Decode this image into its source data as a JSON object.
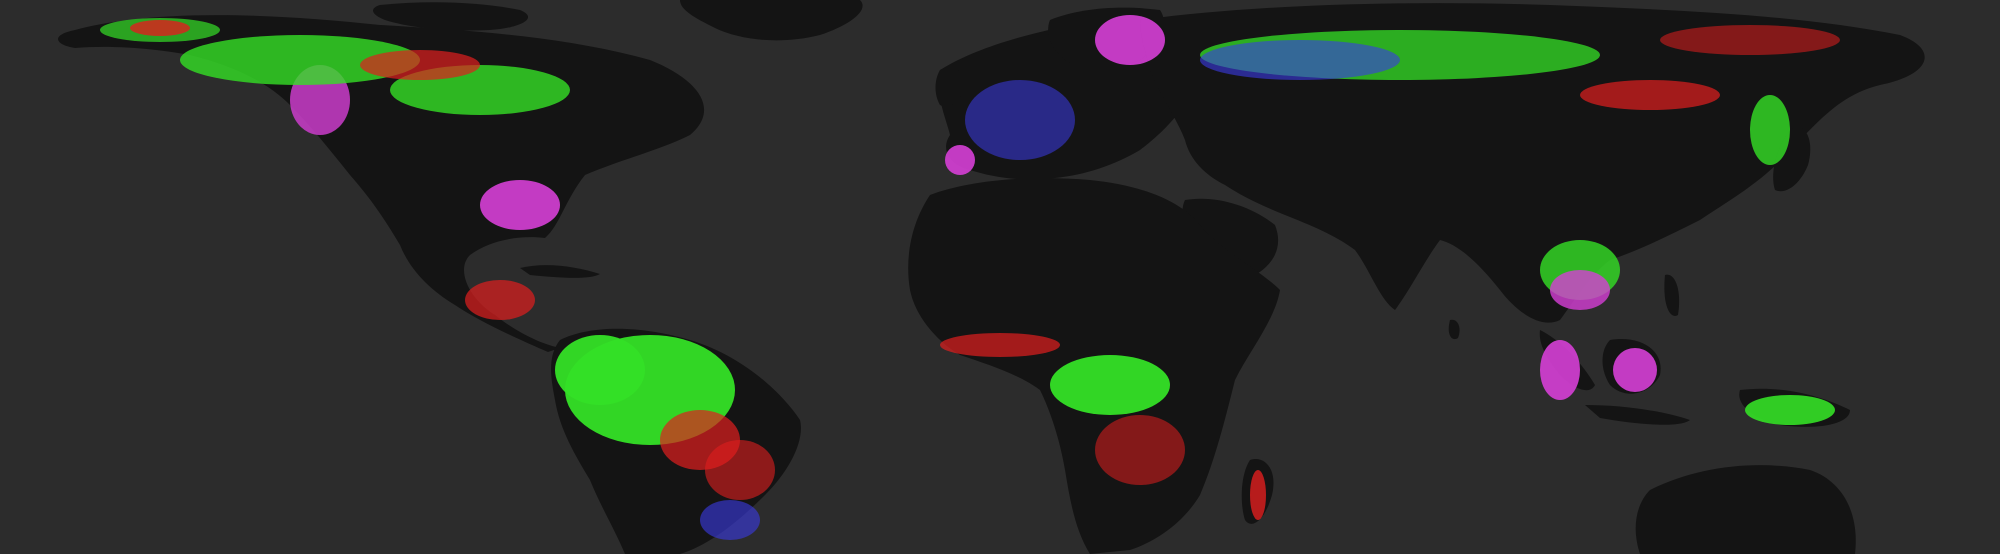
{
  "map": {
    "ocean_color": "#2c2c2c",
    "land_color": "#141414",
    "legend_colors": {
      "forest_loss": "#e01e1e",
      "forest_extent": "#34e026",
      "forest_gain": "#3a3ae6",
      "loss_and_gain": "#d63fd6"
    }
  }
}
